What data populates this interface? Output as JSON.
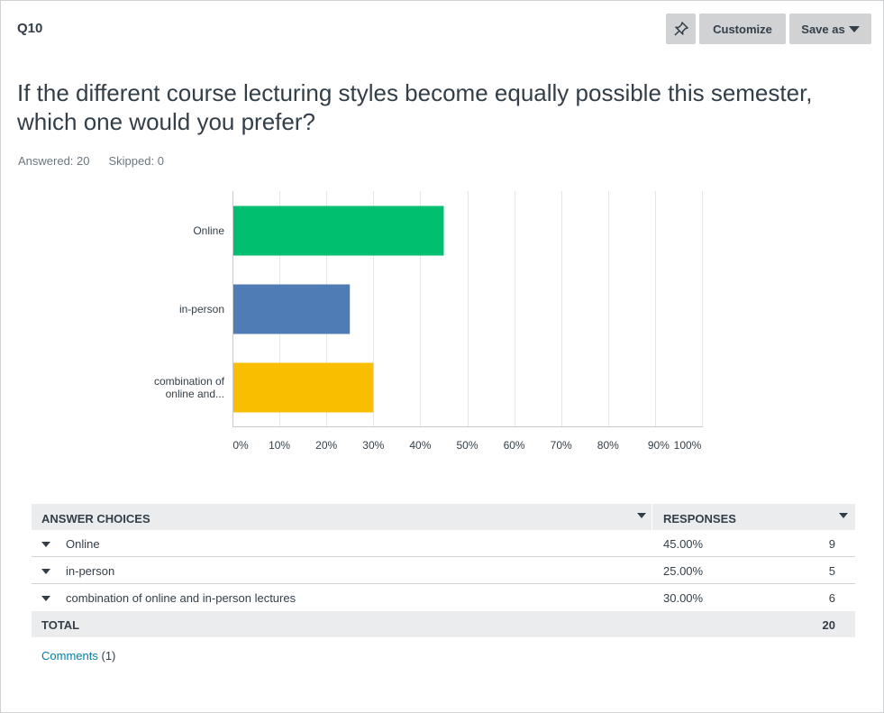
{
  "question": {
    "number": "Q10",
    "title": "If the different course lecturing styles become equally possible this semester, which one would you prefer?",
    "answered": "Answered: 20",
    "skipped": "Skipped: 0"
  },
  "toolbar": {
    "pin_icon": "pin-icon",
    "customize_label": "Customize",
    "save_label": "Save as"
  },
  "colors": {
    "online": "#00bf6f",
    "in_person": "#507cb6",
    "combination": "#f9be00",
    "grid": "#e5e6e7",
    "header_bg": "#ebeced",
    "link": "#007faa"
  },
  "chart_data": {
    "type": "bar",
    "orientation": "horizontal",
    "categories": [
      "Online",
      "in-person",
      "combination of online and..."
    ],
    "values": [
      45,
      25,
      30
    ],
    "xlim": [
      0,
      100
    ],
    "xticks": [
      "0%",
      "10%",
      "20%",
      "30%",
      "40%",
      "50%",
      "60%",
      "70%",
      "80%",
      "90%",
      "100%"
    ],
    "grid": true
  },
  "table": {
    "header_choices": "ANSWER CHOICES",
    "header_responses": "RESPONSES",
    "rows": [
      {
        "choice": "Online",
        "percent": "45.00%",
        "count": "9"
      },
      {
        "choice": "in-person",
        "percent": "25.00%",
        "count": "5"
      },
      {
        "choice": "combination of online and in-person lectures",
        "percent": "30.00%",
        "count": "6"
      }
    ],
    "total_label": "TOTAL",
    "total_value": "20"
  },
  "comments": {
    "link_label": "Comments",
    "count": "(1)"
  }
}
